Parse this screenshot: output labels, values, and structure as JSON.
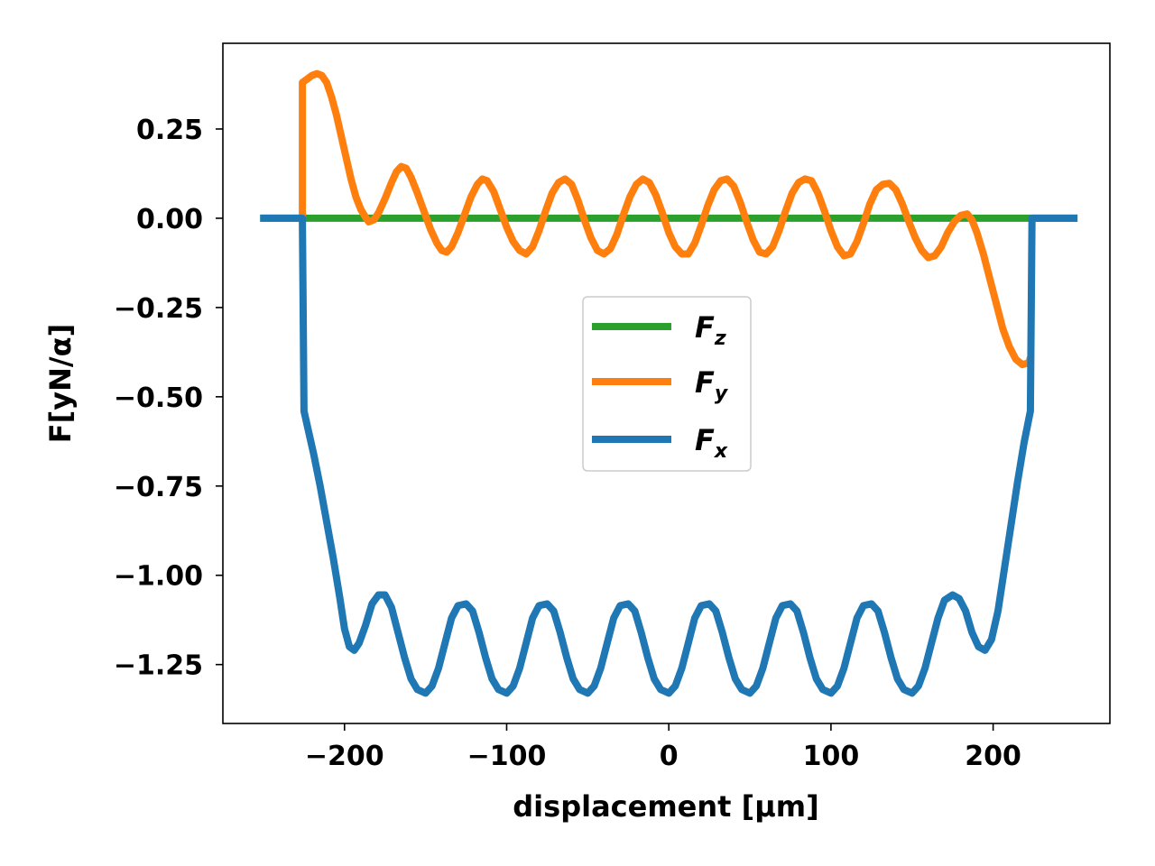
{
  "chart_data": {
    "type": "line",
    "title": "",
    "xlabel": "displacement [μm]",
    "ylabel": "F[yN/α]",
    "xlim": [
      -275,
      272
    ],
    "ylim": [
      -1.415,
      0.49
    ],
    "xticks": [
      -200,
      -100,
      0,
      100,
      200
    ],
    "xtick_labels": [
      "−200",
      "−100",
      "0",
      "100",
      "200"
    ],
    "yticks": [
      0.25,
      0.0,
      -0.25,
      -0.5,
      -0.75,
      -1.0,
      -1.25
    ],
    "ytick_labels": [
      "0.25",
      "0.00",
      "−0.25",
      "−0.50",
      "−0.75",
      "−1.00",
      "−1.25"
    ],
    "grid": false,
    "legend_position": "center",
    "series": [
      {
        "name": "Fz",
        "legend_main": "F",
        "legend_sub": "z",
        "color": "#2ca02c",
        "points": [
          [
            -252,
            0
          ],
          [
            252,
            0
          ]
        ]
      },
      {
        "name": "Fy",
        "legend_main": "F",
        "legend_sub": "y",
        "color": "#ff7f0e",
        "points": [
          [
            -226,
            0
          ],
          [
            -226,
            0.38
          ],
          [
            -223,
            0.39
          ],
          [
            -220,
            0.4
          ],
          [
            -217,
            0.405
          ],
          [
            -214,
            0.4
          ],
          [
            -211,
            0.38
          ],
          [
            -208,
            0.34
          ],
          [
            -205,
            0.29
          ],
          [
            -202,
            0.23
          ],
          [
            -199,
            0.17
          ],
          [
            -196,
            0.11
          ],
          [
            -193,
            0.06
          ],
          [
            -190,
            0.025
          ],
          [
            -187,
            0.003
          ],
          [
            -185,
            -0.01
          ],
          [
            -182,
            -0.005
          ],
          [
            -179,
            0.015
          ],
          [
            -175,
            0.055
          ],
          [
            -171,
            0.1
          ],
          [
            -168,
            0.13
          ],
          [
            -165,
            0.145
          ],
          [
            -162,
            0.14
          ],
          [
            -159,
            0.115
          ],
          [
            -155,
            0.07
          ],
          [
            -151,
            0.02
          ],
          [
            -147,
            -0.03
          ],
          [
            -143,
            -0.07
          ],
          [
            -140,
            -0.09
          ],
          [
            -137,
            -0.095
          ],
          [
            -134,
            -0.08
          ],
          [
            -130,
            -0.04
          ],
          [
            -126,
            0.01
          ],
          [
            -122,
            0.06
          ],
          [
            -118,
            0.095
          ],
          [
            -115,
            0.11
          ],
          [
            -112,
            0.105
          ],
          [
            -108,
            0.075
          ],
          [
            -104,
            0.025
          ],
          [
            -100,
            -0.025
          ],
          [
            -96,
            -0.065
          ],
          [
            -92,
            -0.09
          ],
          [
            -88,
            -0.1
          ],
          [
            -84,
            -0.08
          ],
          [
            -80,
            -0.035
          ],
          [
            -76,
            0.02
          ],
          [
            -72,
            0.07
          ],
          [
            -68,
            0.1
          ],
          [
            -64,
            0.11
          ],
          [
            -60,
            0.095
          ],
          [
            -56,
            0.05
          ],
          [
            -52,
            -0.005
          ],
          [
            -48,
            -0.055
          ],
          [
            -44,
            -0.09
          ],
          [
            -40,
            -0.1
          ],
          [
            -36,
            -0.085
          ],
          [
            -32,
            -0.045
          ],
          [
            -28,
            0.01
          ],
          [
            -24,
            0.06
          ],
          [
            -20,
            0.095
          ],
          [
            -16,
            0.11
          ],
          [
            -12,
            0.1
          ],
          [
            -8,
            0.065
          ],
          [
            -4,
            0.015
          ],
          [
            0,
            -0.04
          ],
          [
            4,
            -0.08
          ],
          [
            8,
            -0.1
          ],
          [
            12,
            -0.1
          ],
          [
            16,
            -0.07
          ],
          [
            20,
            -0.02
          ],
          [
            24,
            0.035
          ],
          [
            28,
            0.08
          ],
          [
            32,
            0.105
          ],
          [
            36,
            0.11
          ],
          [
            40,
            0.09
          ],
          [
            44,
            0.045
          ],
          [
            48,
            -0.01
          ],
          [
            52,
            -0.06
          ],
          [
            56,
            -0.095
          ],
          [
            60,
            -0.1
          ],
          [
            64,
            -0.08
          ],
          [
            68,
            -0.035
          ],
          [
            72,
            0.02
          ],
          [
            76,
            0.07
          ],
          [
            80,
            0.1
          ],
          [
            84,
            0.11
          ],
          [
            88,
            0.105
          ],
          [
            92,
            0.07
          ],
          [
            96,
            0.02
          ],
          [
            100,
            -0.035
          ],
          [
            104,
            -0.08
          ],
          [
            108,
            -0.105
          ],
          [
            112,
            -0.1
          ],
          [
            116,
            -0.065
          ],
          [
            120,
            -0.015
          ],
          [
            124,
            0.04
          ],
          [
            128,
            0.08
          ],
          [
            132,
            0.095
          ],
          [
            136,
            0.098
          ],
          [
            140,
            0.08
          ],
          [
            144,
            0.04
          ],
          [
            148,
            -0.01
          ],
          [
            152,
            -0.055
          ],
          [
            156,
            -0.09
          ],
          [
            160,
            -0.11
          ],
          [
            164,
            -0.105
          ],
          [
            168,
            -0.08
          ],
          [
            172,
            -0.04
          ],
          [
            176,
            -0.01
          ],
          [
            180,
            0.008
          ],
          [
            184,
            0.012
          ],
          [
            187,
            -0.005
          ],
          [
            190,
            -0.04
          ],
          [
            194,
            -0.1
          ],
          [
            198,
            -0.17
          ],
          [
            202,
            -0.24
          ],
          [
            206,
            -0.31
          ],
          [
            210,
            -0.36
          ],
          [
            214,
            -0.395
          ],
          [
            218,
            -0.41
          ],
          [
            222,
            -0.405
          ],
          [
            223,
            -0.39
          ]
        ]
      },
      {
        "name": "Fx",
        "legend_main": "F",
        "legend_sub": "x",
        "color": "#1f77b4",
        "points": [
          [
            -252,
            0
          ],
          [
            -226,
            0
          ],
          [
            -225,
            -0.54
          ],
          [
            -222,
            -0.6
          ],
          [
            -219,
            -0.66
          ],
          [
            -215,
            -0.75
          ],
          [
            -211,
            -0.85
          ],
          [
            -207,
            -0.95
          ],
          [
            -203,
            -1.06
          ],
          [
            -200,
            -1.15
          ],
          [
            -197,
            -1.2
          ],
          [
            -194,
            -1.21
          ],
          [
            -191,
            -1.19
          ],
          [
            -187,
            -1.14
          ],
          [
            -183,
            -1.08
          ],
          [
            -179,
            -1.055
          ],
          [
            -175,
            -1.055
          ],
          [
            -171,
            -1.09
          ],
          [
            -167,
            -1.16
          ],
          [
            -163,
            -1.23
          ],
          [
            -159,
            -1.29
          ],
          [
            -155,
            -1.32
          ],
          [
            -150,
            -1.33
          ],
          [
            -146,
            -1.31
          ],
          [
            -142,
            -1.26
          ],
          [
            -138,
            -1.19
          ],
          [
            -134,
            -1.12
          ],
          [
            -130,
            -1.085
          ],
          [
            -125,
            -1.08
          ],
          [
            -121,
            -1.1
          ],
          [
            -117,
            -1.16
          ],
          [
            -113,
            -1.23
          ],
          [
            -109,
            -1.29
          ],
          [
            -105,
            -1.32
          ],
          [
            -100,
            -1.33
          ],
          [
            -96,
            -1.31
          ],
          [
            -92,
            -1.26
          ],
          [
            -88,
            -1.19
          ],
          [
            -84,
            -1.12
          ],
          [
            -80,
            -1.085
          ],
          [
            -75,
            -1.08
          ],
          [
            -71,
            -1.1
          ],
          [
            -67,
            -1.16
          ],
          [
            -63,
            -1.23
          ],
          [
            -59,
            -1.29
          ],
          [
            -55,
            -1.32
          ],
          [
            -50,
            -1.33
          ],
          [
            -46,
            -1.31
          ],
          [
            -42,
            -1.26
          ],
          [
            -38,
            -1.19
          ],
          [
            -34,
            -1.12
          ],
          [
            -30,
            -1.085
          ],
          [
            -25,
            -1.08
          ],
          [
            -21,
            -1.1
          ],
          [
            -17,
            -1.16
          ],
          [
            -13,
            -1.23
          ],
          [
            -9,
            -1.29
          ],
          [
            -5,
            -1.32
          ],
          [
            0,
            -1.33
          ],
          [
            4,
            -1.31
          ],
          [
            8,
            -1.26
          ],
          [
            12,
            -1.19
          ],
          [
            16,
            -1.12
          ],
          [
            20,
            -1.085
          ],
          [
            25,
            -1.08
          ],
          [
            29,
            -1.1
          ],
          [
            33,
            -1.16
          ],
          [
            37,
            -1.23
          ],
          [
            41,
            -1.29
          ],
          [
            45,
            -1.32
          ],
          [
            50,
            -1.33
          ],
          [
            54,
            -1.31
          ],
          [
            58,
            -1.26
          ],
          [
            62,
            -1.19
          ],
          [
            66,
            -1.12
          ],
          [
            70,
            -1.085
          ],
          [
            75,
            -1.08
          ],
          [
            79,
            -1.1
          ],
          [
            83,
            -1.16
          ],
          [
            87,
            -1.23
          ],
          [
            91,
            -1.29
          ],
          [
            95,
            -1.32
          ],
          [
            100,
            -1.33
          ],
          [
            104,
            -1.31
          ],
          [
            108,
            -1.26
          ],
          [
            112,
            -1.19
          ],
          [
            116,
            -1.12
          ],
          [
            120,
            -1.085
          ],
          [
            125,
            -1.08
          ],
          [
            129,
            -1.1
          ],
          [
            133,
            -1.16
          ],
          [
            137,
            -1.23
          ],
          [
            141,
            -1.29
          ],
          [
            145,
            -1.32
          ],
          [
            150,
            -1.33
          ],
          [
            154,
            -1.31
          ],
          [
            158,
            -1.26
          ],
          [
            162,
            -1.19
          ],
          [
            166,
            -1.12
          ],
          [
            170,
            -1.07
          ],
          [
            175,
            -1.055
          ],
          [
            179,
            -1.065
          ],
          [
            183,
            -1.1
          ],
          [
            187,
            -1.16
          ],
          [
            191,
            -1.2
          ],
          [
            195,
            -1.21
          ],
          [
            199,
            -1.18
          ],
          [
            203,
            -1.1
          ],
          [
            207,
            -0.98
          ],
          [
            211,
            -0.86
          ],
          [
            215,
            -0.74
          ],
          [
            219,
            -0.63
          ],
          [
            223,
            -0.54
          ],
          [
            224,
            0
          ],
          [
            252,
            0
          ]
        ]
      }
    ]
  }
}
